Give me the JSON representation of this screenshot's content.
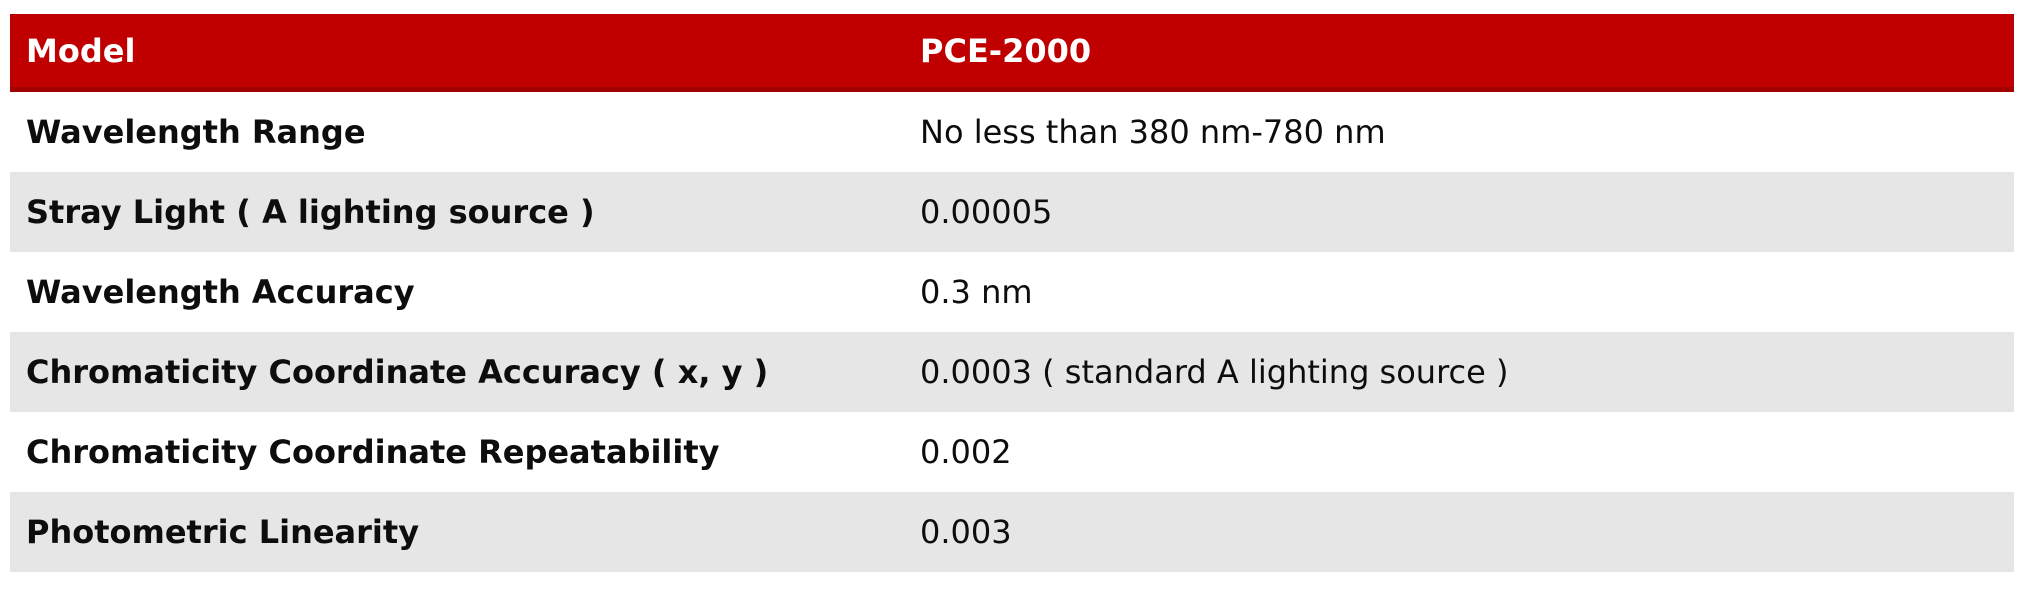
{
  "colors": {
    "header_bg": "#c00000",
    "header_border_bottom": "#a30000",
    "header_text": "#ffffff",
    "row_alt_bg": "#e6e6e6",
    "body_text": "#0d0d0d"
  },
  "table": {
    "header": {
      "col1": "Model",
      "col2": "PCE-2000"
    },
    "rows": [
      {
        "label": "Wavelength Range",
        "value": "No less than 380 nm-780 nm"
      },
      {
        "label": "Stray Light ( A lighting source )",
        "value": "0.00005"
      },
      {
        "label": "Wavelength Accuracy",
        "value": "0.3 nm"
      },
      {
        "label": "Chromaticity Coordinate Accuracy ( x, y )",
        "value": "0.0003 ( standard A lighting source )"
      },
      {
        "label": "Chromaticity Coordinate Repeatability",
        "value": "0.002"
      },
      {
        "label": "Photometric Linearity",
        "value": "0.003"
      }
    ]
  }
}
